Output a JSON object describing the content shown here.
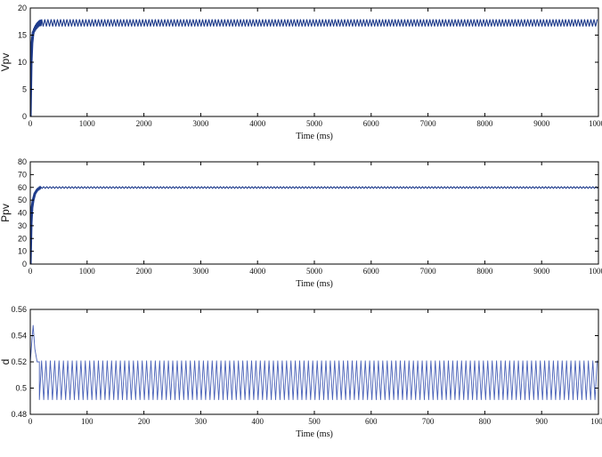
{
  "chart_data": [
    {
      "type": "line",
      "ylabel": "Vpv",
      "xlabel": "Time (ms)",
      "xlim": [
        0,
        10000
      ],
      "ylim": [
        0,
        20
      ],
      "xticks": [
        "0",
        "1000",
        "2000",
        "3000",
        "4000",
        "5000",
        "6000",
        "7000",
        "8000",
        "9000",
        "1000"
      ],
      "yticks": [
        "0",
        "5",
        "10",
        "15",
        "20"
      ],
      "grid": false,
      "series": [
        {
          "color": "#1f3c8c",
          "steady_low": 16.6,
          "steady_high": 17.9,
          "settle_x": 200,
          "x": [
            0,
            15,
            30,
            50,
            80,
            120,
            160,
            200,
            10000
          ],
          "y": [
            0,
            10,
            13.5,
            15.5,
            16.2,
            16.8,
            17.2,
            17.3,
            17.3
          ]
        }
      ]
    },
    {
      "type": "line",
      "ylabel": "Ppv",
      "xlabel": "Time (ms)",
      "xlim": [
        0,
        10000
      ],
      "ylim": [
        0,
        80
      ],
      "xticks": [
        "0",
        "1000",
        "2000",
        "3000",
        "4000",
        "5000",
        "6000",
        "7000",
        "8000",
        "9000",
        "1000"
      ],
      "yticks": [
        "0",
        "10",
        "20",
        "30",
        "40",
        "50",
        "60",
        "70",
        "80"
      ],
      "grid": false,
      "series": [
        {
          "color": "#1f3c8c",
          "steady_low": 59.3,
          "steady_high": 60.5,
          "settle_x": 180,
          "x": [
            0,
            15,
            30,
            50,
            80,
            120,
            180,
            10000
          ],
          "y": [
            0,
            32,
            44,
            50,
            55,
            58,
            60,
            60
          ]
        }
      ]
    },
    {
      "type": "line",
      "ylabel": "d",
      "xlabel": "Time (ms)",
      "xlim": [
        0,
        1000
      ],
      "ylim": [
        0.48,
        0.56
      ],
      "xticks": [
        "0",
        "100",
        "200",
        "300",
        "400",
        "500",
        "600",
        "700",
        "800",
        "900",
        "100"
      ],
      "yticks": [
        "0.48",
        "0.5",
        "0.52",
        "0.54",
        "0.56"
      ],
      "grid": false,
      "series": [
        {
          "color": "#4a62b8",
          "x": [
            0,
            5,
            8,
            12,
            16
          ],
          "y": [
            0.52,
            0.548,
            0.53,
            0.52,
            0.52
          ],
          "osc_low": 0.491,
          "osc_high": 0.521,
          "osc_start": 16,
          "osc_period": 7.7
        }
      ]
    }
  ]
}
